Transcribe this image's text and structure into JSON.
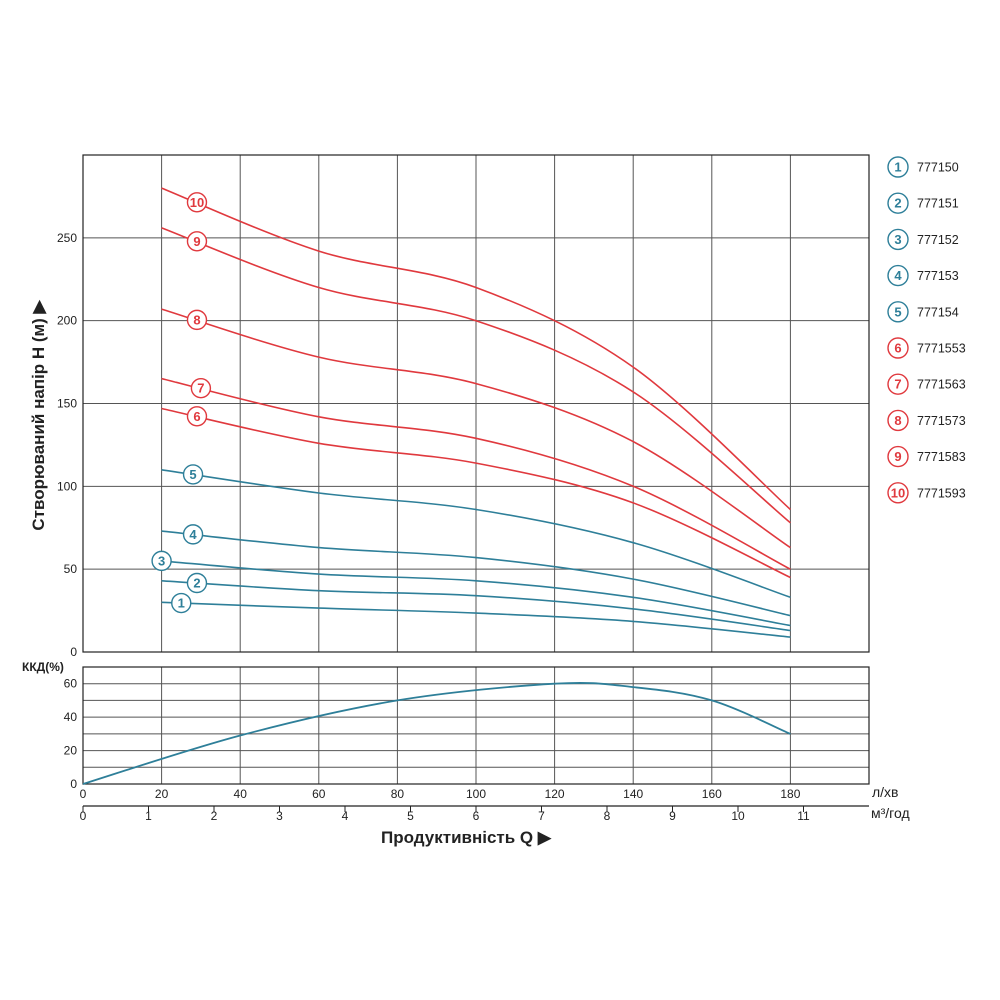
{
  "colors": {
    "blue": "#2e7f99",
    "red": "#e0393e",
    "grid": "#555555",
    "axis": "#222222"
  },
  "chart_data": [
    {
      "type": "line",
      "ylabel": "Створюваний напір H (м)",
      "xlabel": "Продуктивність Q",
      "x_unit_primary": "л/хв",
      "x_unit_secondary": "м³/год",
      "xlim": [
        0,
        200
      ],
      "ylim": [
        0,
        300
      ],
      "x_ticks": [
        "0",
        "20",
        "40",
        "60",
        "80",
        "100",
        "120",
        "140",
        "160",
        "180"
      ],
      "x_secondary_ticks": [
        "0",
        "1",
        "2",
        "3",
        "4",
        "5",
        "6",
        "7",
        "8",
        "9",
        "10",
        "11"
      ],
      "y_ticks": [
        "0",
        "50",
        "100",
        "150",
        "200",
        "250"
      ],
      "grid": true,
      "legend_position": "right",
      "series": [
        {
          "label": "1",
          "name": "777150",
          "color": "blue",
          "x": [
            20,
            60,
            100,
            140,
            180
          ],
          "y": [
            30,
            26.5,
            23.5,
            18.5,
            9
          ]
        },
        {
          "label": "2",
          "name": "777151",
          "color": "blue",
          "x": [
            20,
            60,
            100,
            140,
            180
          ],
          "y": [
            43,
            37,
            34,
            26,
            13
          ]
        },
        {
          "label": "3",
          "name": "777152",
          "color": "blue",
          "x": [
            20,
            60,
            100,
            140,
            180
          ],
          "y": [
            55,
            47,
            43,
            33,
            16
          ]
        },
        {
          "label": "4",
          "name": "777153",
          "color": "blue",
          "x": [
            20,
            60,
            100,
            140,
            180
          ],
          "y": [
            73,
            63,
            57,
            44,
            22
          ]
        },
        {
          "label": "5",
          "name": "777154",
          "color": "blue",
          "x": [
            20,
            60,
            100,
            140,
            180
          ],
          "y": [
            110,
            96,
            86,
            66,
            33
          ]
        },
        {
          "label": "6",
          "name": "7771553",
          "color": "red",
          "x": [
            20,
            60,
            100,
            140,
            180
          ],
          "y": [
            147,
            126,
            114,
            90,
            45
          ]
        },
        {
          "label": "7",
          "name": "7771563",
          "color": "red",
          "x": [
            20,
            60,
            100,
            140,
            180
          ],
          "y": [
            165,
            142,
            129,
            100,
            50
          ]
        },
        {
          "label": "8",
          "name": "7771573",
          "color": "red",
          "x": [
            20,
            60,
            100,
            140,
            180
          ],
          "y": [
            207,
            178,
            162,
            127,
            63
          ]
        },
        {
          "label": "9",
          "name": "7771583",
          "color": "red",
          "x": [
            20,
            60,
            100,
            140,
            180
          ],
          "y": [
            256,
            220,
            200,
            157,
            78
          ]
        },
        {
          "label": "10",
          "name": "7771593",
          "color": "red",
          "x": [
            20,
            60,
            100,
            140,
            180
          ],
          "y": [
            280,
            242,
            220,
            172,
            86
          ]
        }
      ]
    },
    {
      "type": "line",
      "ylabel": "ККД(%)",
      "xlim": [
        0,
        200
      ],
      "ylim": [
        0,
        70
      ],
      "y_ticks": [
        "0",
        "20",
        "40",
        "60"
      ],
      "grid": true,
      "series": [
        {
          "name": "ККД",
          "color": "blue",
          "x": [
            0,
            40,
            80,
            120,
            140,
            160,
            180
          ],
          "y": [
            0,
            29,
            50,
            60,
            58,
            50,
            30
          ]
        }
      ]
    }
  ]
}
